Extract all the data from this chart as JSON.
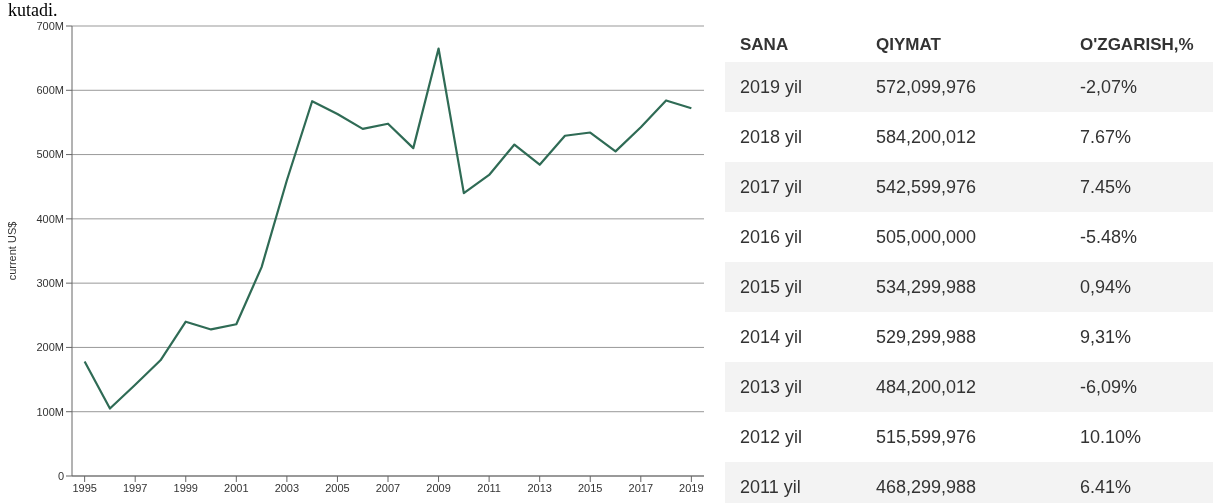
{
  "chart_data": [
    {
      "type": "line",
      "annotations": [
        "kutadi."
      ],
      "ylabel": "current US$",
      "x": [
        1995,
        1996,
        1997,
        1998,
        1999,
        2000,
        2001,
        2002,
        2003,
        2004,
        2005,
        2006,
        2007,
        2008,
        2009,
        2010,
        2011,
        2012,
        2013,
        2014,
        2015,
        2016,
        2017,
        2018,
        2019
      ],
      "series": [
        {
          "color": "#2f6b55",
          "values": [
            178000000,
            105000000,
            142000000,
            180000000,
            240000000,
            228000000,
            236000000,
            325000000,
            460000000,
            583000000,
            563000000,
            540000000,
            548000000,
            510000000,
            665000000,
            440000000,
            468299988,
            515599976,
            484200012,
            529299988,
            534299988,
            505000000,
            542599976,
            584200012,
            572099976
          ]
        }
      ],
      "xlim": [
        1994.5,
        2019.5
      ],
      "xticks": [
        1995,
        1997,
        1999,
        2001,
        2003,
        2005,
        2007,
        2009,
        2011,
        2013,
        2015,
        2017,
        2019
      ],
      "ylim": [
        0,
        700000000
      ],
      "yticks": [
        {
          "value": 0,
          "label": "0"
        },
        {
          "value": 100000000,
          "label": "100M"
        },
        {
          "value": 200000000,
          "label": "200M"
        },
        {
          "value": 300000000,
          "label": "300M"
        },
        {
          "value": 400000000,
          "label": "400M"
        },
        {
          "value": 500000000,
          "label": "500M"
        },
        {
          "value": 600000000,
          "label": "600M"
        },
        {
          "value": 700000000,
          "label": "700M"
        }
      ],
      "grid": "y",
      "legend": false,
      "marker": "none",
      "line_style": "solid"
    },
    {
      "type": "heatmap",
      "ylabel": "SANA",
      "categories": [
        "QIYMAT",
        "O'ZGARISH,%"
      ],
      "y_categories": [
        "2019 yil",
        "2018 yil",
        "2017 yil",
        "2016 yil",
        "2015 yil",
        "2014 yil",
        "2013 yil",
        "2012 yil",
        "2011 yil"
      ],
      "cells": [
        [
          "572,099,976",
          "-2,07%"
        ],
        [
          "584,200,012",
          "7.67%"
        ],
        [
          "542,599,976",
          "7.45%"
        ],
        [
          "505,000,000",
          "-5.48%"
        ],
        [
          "534,299,988",
          "0,94%"
        ],
        [
          "529,299,988",
          "9,31%"
        ],
        [
          "484,200,012",
          "-6,09%"
        ],
        [
          "515,599,976",
          "10.10%"
        ],
        [
          "468,299,988",
          "6.41%"
        ]
      ]
    }
  ]
}
